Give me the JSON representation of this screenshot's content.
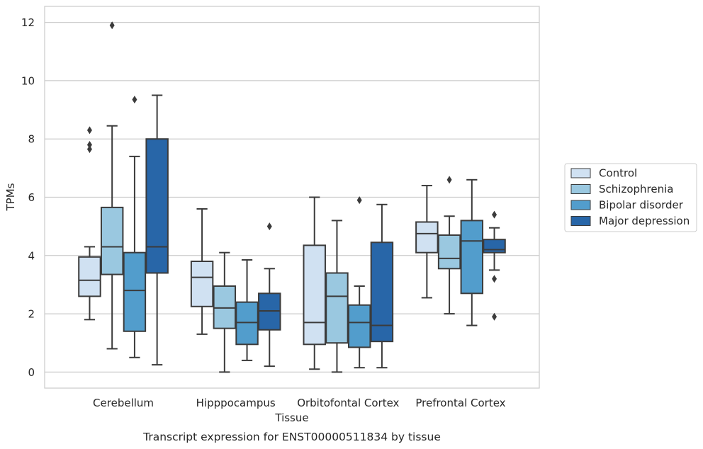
{
  "chart_data": {
    "type": "box",
    "xlabel": "Tissue",
    "ylabel": "TPMs",
    "caption": "Transcript expression for ENST00000511834 by tissue",
    "ylim": [
      -0.55,
      12.55
    ],
    "yticks": [
      0,
      2,
      4,
      6,
      8,
      10,
      12
    ],
    "grid": "horizontal",
    "legend_position": "right",
    "categories": [
      "Cerebellum",
      "Hipppocampus",
      "Orbitofontal Cortex",
      "Prefrontal Cortex"
    ],
    "series": [
      {
        "name": "Control",
        "color": "#d0e1f2",
        "boxes": [
          {
            "whislo": 1.8,
            "q1": 2.6,
            "med": 3.15,
            "q3": 3.95,
            "whishi": 4.3,
            "fliers": [
              8.3,
              7.8,
              7.65
            ]
          },
          {
            "whislo": 1.3,
            "q1": 2.25,
            "med": 3.25,
            "q3": 3.8,
            "whishi": 5.6,
            "fliers": []
          },
          {
            "whislo": 0.1,
            "q1": 0.95,
            "med": 1.7,
            "q3": 4.35,
            "whishi": 6.0,
            "fliers": []
          },
          {
            "whislo": 2.55,
            "q1": 4.1,
            "med": 4.75,
            "q3": 5.15,
            "whishi": 6.4,
            "fliers": []
          }
        ]
      },
      {
        "name": "Schizophrenia",
        "color": "#9ac8e0",
        "boxes": [
          {
            "whislo": 0.8,
            "q1": 3.35,
            "med": 4.3,
            "q3": 5.65,
            "whishi": 8.45,
            "fliers": [
              11.9
            ]
          },
          {
            "whislo": 0.0,
            "q1": 1.5,
            "med": 2.2,
            "q3": 2.95,
            "whishi": 4.1,
            "fliers": []
          },
          {
            "whislo": 0.0,
            "q1": 1.0,
            "med": 2.6,
            "q3": 3.4,
            "whishi": 5.2,
            "fliers": []
          },
          {
            "whislo": 2.0,
            "q1": 3.55,
            "med": 3.9,
            "q3": 4.7,
            "whishi": 5.35,
            "fliers": [
              6.6
            ]
          }
        ]
      },
      {
        "name": "Bipolar disorder",
        "color": "#529dcc",
        "boxes": [
          {
            "whislo": 0.5,
            "q1": 1.4,
            "med": 2.8,
            "q3": 4.1,
            "whishi": 7.4,
            "fliers": [
              9.35
            ]
          },
          {
            "whislo": 0.4,
            "q1": 0.95,
            "med": 1.7,
            "q3": 2.4,
            "whishi": 3.85,
            "fliers": []
          },
          {
            "whislo": 0.15,
            "q1": 0.85,
            "med": 1.7,
            "q3": 2.3,
            "whishi": 2.95,
            "fliers": [
              5.9
            ]
          },
          {
            "whislo": 1.6,
            "q1": 2.7,
            "med": 4.5,
            "q3": 5.2,
            "whishi": 6.6,
            "fliers": []
          }
        ]
      },
      {
        "name": "Major depression",
        "color": "#2866a8",
        "boxes": [
          {
            "whislo": 0.25,
            "q1": 3.4,
            "med": 4.3,
            "q3": 8.0,
            "whishi": 9.5,
            "fliers": []
          },
          {
            "whislo": 0.2,
            "q1": 1.45,
            "med": 2.1,
            "q3": 2.7,
            "whishi": 3.55,
            "fliers": [
              5.0
            ]
          },
          {
            "whislo": 0.15,
            "q1": 1.05,
            "med": 1.6,
            "q3": 4.45,
            "whishi": 5.75,
            "fliers": []
          },
          {
            "whislo": 3.5,
            "q1": 4.1,
            "med": 4.2,
            "q3": 4.55,
            "whishi": 4.95,
            "fliers": [
              5.4,
              3.2,
              1.9
            ]
          }
        ]
      }
    ]
  }
}
